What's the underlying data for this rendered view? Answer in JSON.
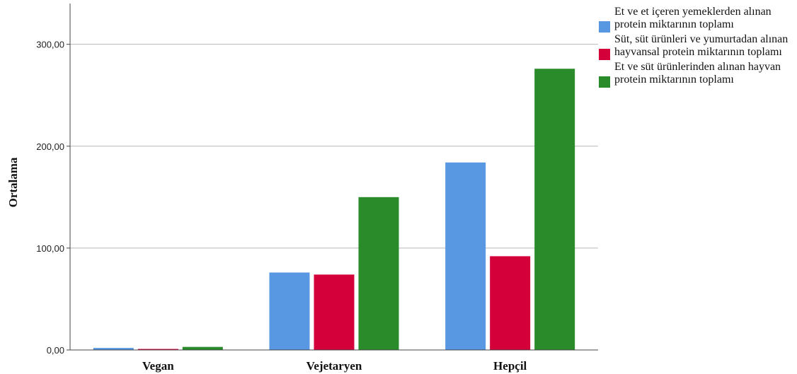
{
  "chart_data": {
    "type": "bar",
    "categories": [
      "Vegan",
      "Vejetaryen",
      "Hepçil"
    ],
    "ylabel": "Ortalama",
    "xlabel": "",
    "ylim": [
      0,
      340
    ],
    "yticks": [
      0,
      100,
      200,
      300
    ],
    "ytick_labels": [
      "0,00",
      "100,00",
      "200,00",
      "300,00"
    ],
    "grid": true,
    "legend_position": "top-right",
    "series": [
      {
        "name": "Et ve et içeren yemeklerden alınan protein miktarının toplamı",
        "color": "#5898e3",
        "values": [
          2,
          76,
          184
        ]
      },
      {
        "name": "Süt, süt ürünleri ve yumurtadan alınan hayvansal protein miktarının toplamı",
        "color": "#d4003a",
        "values": [
          1,
          74,
          92
        ]
      },
      {
        "name": "Et ve süt ürünlerinden alınan hayvan protein miktarının toplamı",
        "color": "#2a8b2a",
        "values": [
          3,
          150,
          276
        ]
      }
    ]
  }
}
